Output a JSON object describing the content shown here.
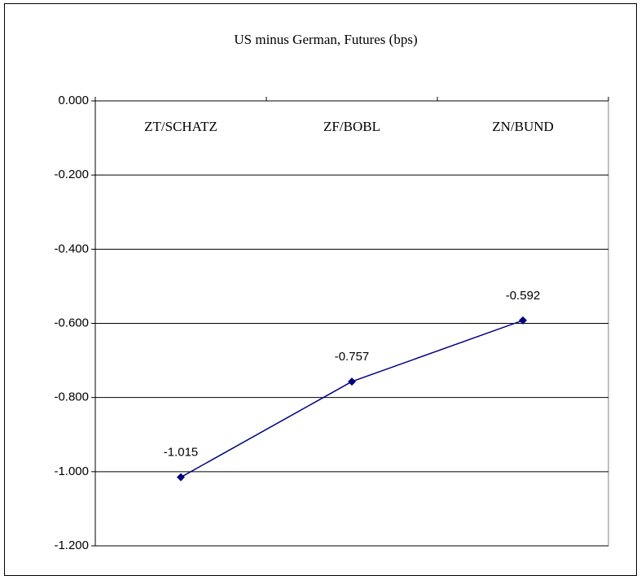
{
  "chart_data": {
    "type": "line",
    "title": "US minus German, Futures (bps)",
    "categories": [
      "ZT/SCHATZ",
      "ZF/BOBL",
      "ZN/BUND"
    ],
    "values": [
      -1.015,
      -0.757,
      -0.592
    ],
    "color": "#000080",
    "ylim": [
      -1.2,
      0
    ],
    "yticks": [
      {
        "value": 0,
        "label": "0.000"
      },
      {
        "value": -0.2,
        "label": "-0.200"
      },
      {
        "value": -0.4,
        "label": "-0.400"
      },
      {
        "value": -0.6,
        "label": "-0.600"
      },
      {
        "value": -0.8,
        "label": "-0.800"
      },
      {
        "value": -1.0,
        "label": "-1.000"
      },
      {
        "value": -1.2,
        "label": "-1.200"
      }
    ],
    "grid": true
  }
}
